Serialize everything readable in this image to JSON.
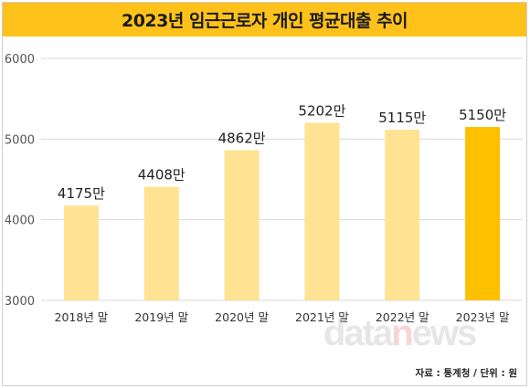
{
  "title": "2023년 임근근로자 개인 평균대출 추이",
  "source": "자료 : 통계청 / 단위 : 원",
  "watermark": {
    "main": "data",
    "accent": "n",
    "tail": "ews"
  },
  "colors": {
    "title_bar": "#ffc21a",
    "bar": "#ffe393",
    "bar_highlight": "#ffc000",
    "grid": "#d9d9d9"
  },
  "chart_data": {
    "type": "bar",
    "categories": [
      "2018년 말",
      "2019년 말",
      "2020년 말",
      "2021년 말",
      "2022년 말",
      "2023년 말"
    ],
    "values": [
      4175,
      4408,
      4862,
      5202,
      5115,
      5150
    ],
    "data_labels": [
      "4175만",
      "4408만",
      "4862만",
      "5202만",
      "5115만",
      "5150만"
    ],
    "highlight_index": 5,
    "ylim": [
      3000,
      6000
    ],
    "yticks": [
      3000,
      4000,
      5000,
      6000
    ],
    "grid": true,
    "legend": "none"
  }
}
